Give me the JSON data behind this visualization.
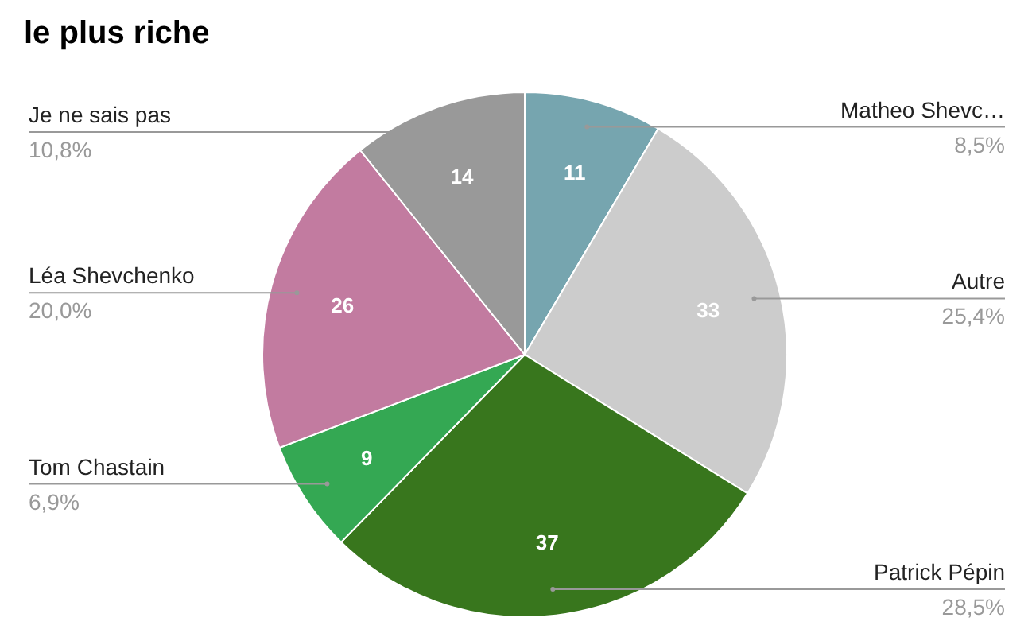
{
  "chart_data": {
    "type": "pie",
    "title": "le plus riche",
    "categories": [
      "Matheo Shevc…",
      "Autre",
      "Patrick Pépin",
      "Tom Chastain",
      "Léa Shevchenko",
      "Je ne sais pas"
    ],
    "values": [
      8.5,
      25.4,
      28.5,
      6.9,
      20.0,
      10.8
    ],
    "colors": [
      "#76a5af",
      "#cccccc",
      "#38761d",
      "#34a853",
      "#c27ba0",
      "#999999"
    ],
    "value_labels": [
      "8,5%",
      "25,4%",
      "28,5%",
      "6,9%",
      "20,0%",
      "10,8%"
    ],
    "annotations": [
      "11",
      "33",
      "37",
      "9",
      "26",
      "14"
    ]
  }
}
